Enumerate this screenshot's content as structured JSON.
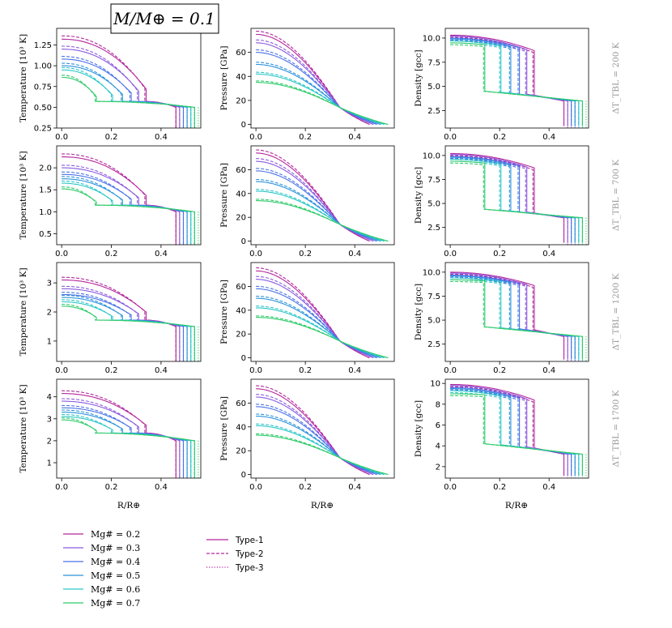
{
  "chart_data": {
    "type": "line",
    "title": "M/M⊕ = 0.1",
    "xlabel": "R/R⊕",
    "xlim": [
      -0.02,
      0.56
    ],
    "xticks": [
      0.0,
      0.2,
      0.4
    ],
    "xticklabels": [
      "0.0",
      "0.2",
      "0.4"
    ],
    "columns": [
      {
        "quantity": "temperature",
        "ylabel": "Temperature [10³ K]"
      },
      {
        "quantity": "pressure",
        "ylabel": "Pressure [GPa]"
      },
      {
        "quantity": "density",
        "ylabel": "Density [gcc]"
      }
    ],
    "rows": [
      {
        "label": "ΔT_TBL = 200 K",
        "delta_t_tbl": 200,
        "temperature": {
          "ylim": [
            0.25,
            1.45
          ],
          "yticks": [
            0.25,
            0.5,
            0.75,
            1.0,
            1.25
          ],
          "yticklabels": [
            "0.25",
            "0.50",
            "0.75",
            "1.00",
            "1.25"
          ],
          "t_center": [
            1.32,
            1.2,
            1.08,
            1.0,
            0.95,
            0.86
          ],
          "t_surface": 0.5,
          "t_cmb": 0.57
        },
        "pressure": {
          "ylim": [
            -3,
            80
          ],
          "yticks": [
            0,
            20,
            40,
            60
          ],
          "yticklabels": [
            "0",
            "20",
            "40",
            "60"
          ],
          "p_center": [
            75,
            68,
            60,
            50,
            42,
            35
          ],
          "p_crossover": 14
        },
        "density": {
          "ylim": [
            0.7,
            11.0
          ],
          "yticks": [
            2.5,
            5.0,
            7.5,
            10.0
          ],
          "yticklabels": [
            "2.5",
            "5.0",
            "7.5",
            "10.0"
          ],
          "rho_center": [
            10.3,
            10.2,
            10.0,
            9.9,
            9.7,
            9.5
          ],
          "rho_cmb": [
            8.7,
            8.8,
            9.0,
            9.1,
            9.2,
            9.3
          ],
          "rho_mantle_top": [
            4.1,
            4.2,
            4.2,
            4.3,
            4.4,
            4.5
          ],
          "rho_surface": 3.5
        }
      },
      {
        "label": "ΔT_TBL = 700 K",
        "delta_t_tbl": 700,
        "temperature": {
          "ylim": [
            0.25,
            2.5
          ],
          "yticks": [
            0.5,
            1.0,
            1.5,
            2.0
          ],
          "yticklabels": [
            "0.5",
            "1.0",
            "1.5",
            "2.0"
          ],
          "t_center": [
            2.25,
            2.0,
            1.85,
            1.75,
            1.65,
            1.52
          ],
          "t_surface": 1.0,
          "t_cmb": 1.15
        },
        "pressure": {
          "ylim": [
            -3,
            80
          ],
          "yticks": [
            0,
            20,
            40,
            60
          ],
          "yticklabels": [
            "0",
            "20",
            "40",
            "60"
          ],
          "p_center": [
            74,
            67,
            59,
            50,
            42,
            34
          ],
          "p_crossover": 14
        },
        "density": {
          "ylim": [
            0.7,
            11.0
          ],
          "yticks": [
            2.5,
            5.0,
            7.5,
            10.0
          ],
          "yticklabels": [
            "2.5",
            "5.0",
            "7.5",
            "10.0"
          ],
          "rho_center": [
            10.2,
            10.1,
            9.9,
            9.8,
            9.6,
            9.4
          ],
          "rho_cmb": [
            8.7,
            8.8,
            8.9,
            9.0,
            9.1,
            9.2
          ],
          "rho_mantle_top": [
            4.0,
            4.1,
            4.1,
            4.2,
            4.3,
            4.4
          ],
          "rho_surface": 3.5
        }
      },
      {
        "label": "ΔT_TBL = 1200 K",
        "delta_t_tbl": 1200,
        "temperature": {
          "ylim": [
            0.3,
            3.7
          ],
          "yticks": [
            1,
            2,
            3
          ],
          "yticklabels": [
            "1",
            "2",
            "3"
          ],
          "t_center": [
            3.1,
            2.8,
            2.6,
            2.5,
            2.35,
            2.2
          ],
          "t_surface": 1.5,
          "t_cmb": 1.72
        },
        "pressure": {
          "ylim": [
            -3,
            80
          ],
          "yticks": [
            0,
            20,
            40,
            60
          ],
          "yticklabels": [
            "0",
            "20",
            "40",
            "60"
          ],
          "p_center": [
            73,
            66,
            58,
            50,
            42,
            34
          ],
          "p_crossover": 14
        },
        "density": {
          "ylim": [
            0.7,
            11.0
          ],
          "yticks": [
            2.5,
            5.0,
            7.5,
            10.0
          ],
          "yticklabels": [
            "2.5",
            "5.0",
            "7.5",
            "10.0"
          ],
          "rho_center": [
            10.0,
            9.9,
            9.7,
            9.6,
            9.4,
            9.2
          ],
          "rho_cmb": [
            8.6,
            8.7,
            8.8,
            8.9,
            9.0,
            9.1
          ],
          "rho_mantle_top": [
            4.0,
            4.0,
            4.1,
            4.1,
            4.2,
            4.3
          ],
          "rho_surface": 3.3
        }
      },
      {
        "label": "ΔT_TBL = 1700 K",
        "delta_t_tbl": 1700,
        "temperature": {
          "ylim": [
            0.3,
            4.8
          ],
          "yticks": [
            1,
            2,
            3,
            4
          ],
          "yticklabels": [
            "1",
            "2",
            "3",
            "4"
          ],
          "t_center": [
            4.15,
            3.8,
            3.5,
            3.3,
            3.1,
            2.95
          ],
          "t_surface": 2.0,
          "t_cmb": 2.35
        },
        "pressure": {
          "ylim": [
            -3,
            80
          ],
          "yticks": [
            0,
            20,
            40,
            60
          ],
          "yticklabels": [
            "0",
            "20",
            "40",
            "60"
          ],
          "p_center": [
            72,
            65,
            57,
            49,
            41,
            33
          ],
          "p_crossover": 14
        },
        "density": {
          "ylim": [
            0.9,
            10.4
          ],
          "yticks": [
            2,
            4,
            6,
            8,
            10
          ],
          "yticklabels": [
            "2",
            "4",
            "6",
            "8",
            "10"
          ],
          "rho_center": [
            9.9,
            9.8,
            9.6,
            9.5,
            9.3,
            9.0
          ],
          "rho_cmb": [
            8.4,
            8.5,
            8.6,
            8.7,
            8.8,
            8.9
          ],
          "rho_mantle_top": [
            3.8,
            3.9,
            3.9,
            4.0,
            4.1,
            4.2
          ],
          "rho_surface": 3.2
        }
      }
    ],
    "series": [
      {
        "name": "Mg# = 0.2",
        "color": "#b4279c",
        "r_cmb": 0.34,
        "r_surface": 0.46
      },
      {
        "name": "Mg# = 0.3",
        "color": "#8a5ae0",
        "r_cmb": 0.31,
        "r_surface": 0.475
      },
      {
        "name": "Mg# = 0.4",
        "color": "#4a72e8",
        "r_cmb": 0.28,
        "r_surface": 0.49
      },
      {
        "name": "Mg# = 0.5",
        "color": "#2b92db",
        "r_cmb": 0.245,
        "r_surface": 0.505
      },
      {
        "name": "Mg# = 0.6",
        "color": "#2cc6c8",
        "r_cmb": 0.205,
        "r_surface": 0.52
      },
      {
        "name": "Mg# = 0.7",
        "color": "#2fcb6b",
        "r_cmb": 0.14,
        "r_surface": 0.535
      }
    ],
    "types": [
      {
        "name": "Type-1",
        "style": "solid"
      },
      {
        "name": "Type-2",
        "style": "dashed",
        "r_cmb_offset": -0.005
      },
      {
        "name": "Type-3",
        "style": "dotted",
        "r_surface_offset": 0.015
      }
    ]
  },
  "legend": {
    "mg_labels": [
      "Mg# = 0.2",
      "Mg# = 0.3",
      "Mg# = 0.4",
      "Mg# = 0.5",
      "Mg# = 0.6",
      "Mg# = 0.7"
    ],
    "type_labels": [
      "Type-1",
      "Type-2",
      "Type-3"
    ],
    "legend_color": "#b4279c"
  }
}
